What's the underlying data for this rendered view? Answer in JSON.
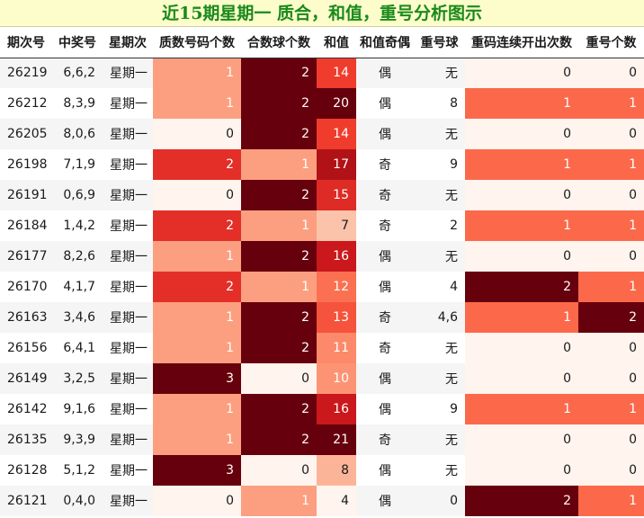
{
  "title": "近15期星期一 质合，和值，重号分析图示",
  "headers": [
    "期次号",
    "中奖号",
    "星期次",
    "质数号码个数",
    "合数球个数",
    "和值",
    "和值奇偶",
    "重号球",
    "重码连续开出次数",
    "重号个数"
  ],
  "rows": [
    [
      "26219",
      "6,6,2",
      "星期一",
      "1",
      "2",
      "14",
      "偶",
      "无",
      "0",
      "0"
    ],
    [
      "26212",
      "8,3,9",
      "星期一",
      "1",
      "2",
      "20",
      "偶",
      "8",
      "1",
      "1"
    ],
    [
      "26205",
      "8,0,6",
      "星期一",
      "0",
      "2",
      "14",
      "偶",
      "无",
      "0",
      "0"
    ],
    [
      "26198",
      "7,1,9",
      "星期一",
      "2",
      "1",
      "17",
      "奇",
      "9",
      "1",
      "1"
    ],
    [
      "26191",
      "0,6,9",
      "星期一",
      "0",
      "2",
      "15",
      "奇",
      "无",
      "0",
      "0"
    ],
    [
      "26184",
      "1,4,2",
      "星期一",
      "2",
      "1",
      "7",
      "奇",
      "2",
      "1",
      "1"
    ],
    [
      "26177",
      "8,2,6",
      "星期一",
      "1",
      "2",
      "16",
      "偶",
      "无",
      "0",
      "0"
    ],
    [
      "26170",
      "4,1,7",
      "星期一",
      "2",
      "1",
      "12",
      "偶",
      "4",
      "2",
      "1"
    ],
    [
      "26163",
      "3,4,6",
      "星期一",
      "1",
      "2",
      "13",
      "奇",
      "4,6",
      "1",
      "2"
    ],
    [
      "26156",
      "6,4,1",
      "星期一",
      "1",
      "2",
      "11",
      "奇",
      "无",
      "0",
      "0"
    ],
    [
      "26149",
      "3,2,5",
      "星期一",
      "3",
      "0",
      "10",
      "偶",
      "无",
      "0",
      "0"
    ],
    [
      "26142",
      "9,1,6",
      "星期一",
      "1",
      "2",
      "16",
      "偶",
      "9",
      "1",
      "1"
    ],
    [
      "26135",
      "9,3,9",
      "星期一",
      "1",
      "2",
      "21",
      "奇",
      "无",
      "0",
      "0"
    ],
    [
      "26128",
      "5,1,2",
      "星期一",
      "3",
      "0",
      "8",
      "偶",
      "无",
      "0",
      "0"
    ],
    [
      "26121",
      "0,4,0",
      "星期一",
      "0",
      "1",
      "4",
      "偶",
      "0",
      "2",
      "1"
    ]
  ],
  "heatmap_colors": {
    "3": [
      "#fff4ee",
      "#fc9f80",
      "#e32f27",
      "#67000d"
    ],
    "2": [
      "#fff4ee",
      "#fb694a",
      "#67000d"
    ],
    "sum": {
      "4": "#fff4ee",
      "7": "#fcc3ab",
      "8": "#fcb499",
      "10": "#fc9474",
      "11": "#fc8a6a",
      "12": "#fb7050",
      "13": "#f5533b",
      "14": "#ef3c2c",
      "15": "#de2b25",
      "16": "#cb181d",
      "17": "#b11218",
      "20": "#67000d",
      "21": "#67000d"
    }
  }
}
